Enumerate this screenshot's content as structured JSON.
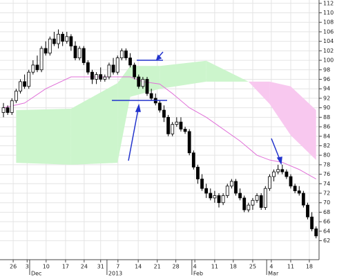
{
  "chart_data": {
    "type": "candlestick",
    "candles": [
      [
        89,
        91,
        88,
        90
      ],
      [
        90,
        90.5,
        88.5,
        89
      ],
      [
        89,
        92,
        88.5,
        91.5
      ],
      [
        91.5,
        94,
        91,
        93.5
      ],
      [
        93.5,
        96,
        93,
        95.5
      ],
      [
        95.5,
        97,
        94,
        94.5
      ],
      [
        94.5,
        98,
        94,
        97.5
      ],
      [
        97.5,
        100,
        97,
        99
      ],
      [
        99,
        101,
        97.5,
        98
      ],
      [
        98,
        103,
        97.5,
        102.5
      ],
      [
        102.5,
        104,
        101,
        101.5
      ],
      [
        101.5,
        105,
        101,
        104.5
      ],
      [
        104.5,
        106,
        103,
        103.5
      ],
      [
        103.5,
        106.5,
        102.5,
        105.5
      ],
      [
        105.5,
        106,
        103,
        104
      ],
      [
        104,
        106,
        103.5,
        105
      ],
      [
        105,
        105.5,
        102,
        103
      ],
      [
        103,
        104,
        100,
        100.5
      ],
      [
        100.5,
        103,
        100,
        102.5
      ],
      [
        102.5,
        103,
        99,
        99.5
      ],
      [
        99.5,
        100,
        97,
        97.5
      ],
      [
        97.5,
        98,
        95,
        96
      ],
      [
        96,
        97.5,
        95,
        97
      ],
      [
        97,
        98.5,
        95.5,
        96
      ],
      [
        96,
        97,
        95.5,
        96.5
      ],
      [
        96.5,
        99.5,
        96,
        99
      ],
      [
        99,
        100.5,
        97,
        97.5
      ],
      [
        97.5,
        101,
        97,
        100.5
      ],
      [
        100.5,
        102.5,
        100,
        102
      ],
      [
        102,
        102.5,
        100,
        100.5
      ],
      [
        100.5,
        101.5,
        98.5,
        99
      ],
      [
        99,
        99.5,
        96,
        96.5
      ],
      [
        96.5,
        97,
        94,
        94.5
      ],
      [
        94.5,
        96.5,
        94,
        96
      ],
      [
        96,
        96.5,
        92.5,
        93
      ],
      [
        93,
        94,
        91.5,
        92
      ],
      [
        92,
        93,
        90.5,
        91
      ],
      [
        91,
        91.5,
        89,
        89.5
      ],
      [
        89.5,
        90.5,
        87,
        88
      ],
      [
        88,
        88.5,
        84,
        84.5
      ],
      [
        84.5,
        87,
        84,
        86.5
      ],
      [
        86.5,
        88,
        86,
        87
      ],
      [
        87,
        88,
        85,
        85.5
      ],
      [
        85.5,
        86,
        84.5,
        85
      ],
      [
        85,
        85.5,
        80,
        80.5
      ],
      [
        80.5,
        81,
        77,
        77.5
      ],
      [
        77.5,
        78,
        74,
        75
      ],
      [
        75,
        76,
        72.5,
        73
      ],
      [
        73,
        74,
        71,
        72
      ],
      [
        72,
        73,
        70.5,
        71
      ],
      [
        71,
        72.5,
        70,
        71.5
      ],
      [
        71.5,
        72,
        69,
        70
      ],
      [
        70,
        72,
        69.5,
        71.5
      ],
      [
        71.5,
        74,
        71,
        73.5
      ],
      [
        73.5,
        75,
        73,
        74.5
      ],
      [
        74.5,
        75,
        71.5,
        72
      ],
      [
        72,
        73,
        70.5,
        71
      ],
      [
        71,
        71.5,
        68,
        68.5
      ],
      [
        68.5,
        70,
        68,
        69.5
      ],
      [
        69.5,
        71,
        68.5,
        70.5
      ],
      [
        70.5,
        72,
        70,
        71.5
      ],
      [
        71.5,
        72,
        68.5,
        69
      ],
      [
        69,
        73.5,
        68.5,
        73
      ],
      [
        73,
        76,
        72.5,
        75.5
      ],
      [
        75.5,
        77,
        74.5,
        76.5
      ],
      [
        76.5,
        78,
        76,
        77
      ],
      [
        77,
        78,
        76,
        76.5
      ],
      [
        76.5,
        77,
        75,
        75.5
      ],
      [
        75.5,
        76,
        73,
        73.5
      ],
      [
        73.5,
        74,
        72,
        72.5
      ],
      [
        72.5,
        73.5,
        71.5,
        72
      ],
      [
        72,
        72.5,
        69,
        69.5
      ],
      [
        69.5,
        70,
        66.5,
        67
      ],
      [
        67,
        68,
        64,
        64.5
      ],
      [
        64.5,
        65,
        62.5,
        63
      ]
    ],
    "cloud": {
      "x": [
        3,
        16,
        27,
        30,
        37,
        48,
        58,
        63,
        68,
        74
      ],
      "span_a": [
        89.5,
        89.8,
        95.2,
        98.8,
        98.8,
        99.9,
        95.5,
        90.8,
        84.2,
        79
      ],
      "span_b": [
        78.4,
        78,
        78.4,
        92.3,
        94,
        95.5,
        95.5,
        95.5,
        94.5,
        89.5
      ],
      "up_color": "#ccf5cc",
      "down_color": "#f8c8ef"
    },
    "line": {
      "x": [
        0,
        5,
        10,
        16,
        25,
        30,
        33,
        37,
        40,
        44,
        48,
        52,
        56,
        60,
        63,
        66,
        70,
        74
      ],
      "values": [
        90,
        91,
        94,
        96.5,
        96.5,
        96.5,
        95.5,
        95,
        93,
        90,
        88,
        85.5,
        83,
        80,
        79,
        78.5,
        77,
        75
      ],
      "color": "#e070d8"
    },
    "xlim": [
      -0.82,
      74.7
    ],
    "ylim": [
      58,
      112.7
    ],
    "yticks": [
      62,
      64,
      66,
      68,
      70,
      72,
      74,
      76,
      78,
      80,
      82,
      84,
      86,
      88,
      90,
      92,
      94,
      96,
      98,
      100,
      102,
      104,
      106,
      108,
      110,
      112
    ],
    "xticks": [
      {
        "value": 2.3,
        "label": "26"
      },
      {
        "value": 5.6,
        "label": "3"
      },
      {
        "value": 10.1,
        "label": "10"
      },
      {
        "value": 14.7,
        "label": "17"
      },
      {
        "value": 19.1,
        "label": "24"
      },
      {
        "value": 23,
        "label": "31"
      },
      {
        "value": 27.1,
        "label": "7"
      },
      {
        "value": 31.9,
        "label": "14"
      },
      {
        "value": 36.4,
        "label": "21"
      },
      {
        "value": 40.8,
        "label": "28"
      },
      {
        "value": 45.3,
        "label": "4"
      },
      {
        "value": 50,
        "label": "11"
      },
      {
        "value": 54.4,
        "label": "18"
      },
      {
        "value": 59,
        "label": "25"
      },
      {
        "value": 63.4,
        "label": "4"
      },
      {
        "value": 68,
        "label": "11"
      },
      {
        "value": 72.4,
        "label": "18"
      }
    ],
    "month_ticks": [
      {
        "value": 6.2,
        "label": "Dec"
      },
      {
        "value": 24.5,
        "label": "2013"
      },
      {
        "value": 44.6,
        "label": "Feb"
      },
      {
        "value": 62.3,
        "label": "Mar"
      }
    ],
    "grid": true
  }
}
